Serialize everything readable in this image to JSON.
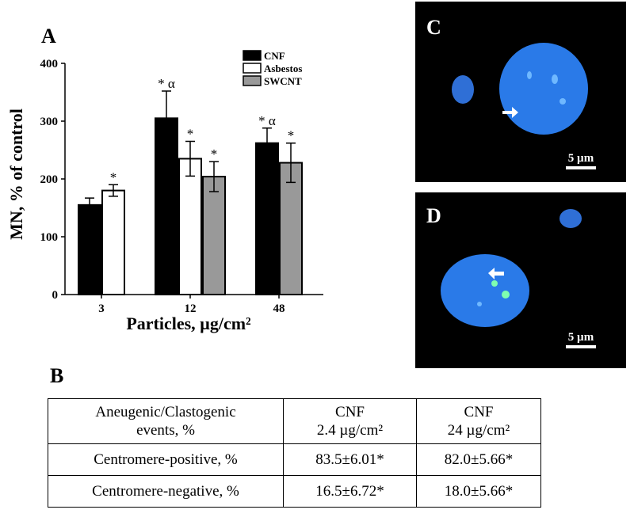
{
  "panel_a": {
    "label": "A"
  },
  "chart_data": {
    "type": "bar",
    "categories": [
      "3",
      "12",
      "48"
    ],
    "y_label": "MN, % of control",
    "x_label": "Particles, µg/cm²",
    "ylim": [
      0,
      400
    ],
    "yticks": [
      0,
      100,
      200,
      300,
      400
    ],
    "legend": "top-right",
    "series": [
      {
        "name": "CNF",
        "color": "#000000",
        "values": [
          155,
          305,
          262
        ],
        "errors": [
          12,
          47,
          26
        ],
        "significance": [
          null,
          "* α",
          "* α"
        ]
      },
      {
        "name": "Asbestos",
        "color": "#ffffff",
        "values": [
          180,
          235,
          null
        ],
        "errors": [
          10,
          30,
          null
        ],
        "significance": [
          "*",
          "*",
          null
        ]
      },
      {
        "name": "SWCNT",
        "color": "#999999",
        "values": [
          null,
          204,
          228
        ],
        "errors": [
          null,
          26,
          34
        ],
        "significance": [
          null,
          "*",
          "*"
        ]
      }
    ]
  },
  "micrographs": [
    {
      "label": "C",
      "scale_bar": "5 µm"
    },
    {
      "label": "D",
      "scale_bar": "5 µm"
    }
  ],
  "panel_b": {
    "label": "B"
  },
  "table": {
    "header": [
      [
        "Aneugenic/Clastogenic",
        "events, %"
      ],
      [
        "CNF",
        "2.4 µg/cm²"
      ],
      [
        "CNF",
        "24 µg/cm²"
      ]
    ],
    "rows": [
      [
        "Centromere-positive, %",
        "83.5±6.01*",
        "82.0±5.66*"
      ],
      [
        "Centromere-negative, %",
        "16.5±6.72*",
        "18.0±5.66*"
      ]
    ]
  }
}
